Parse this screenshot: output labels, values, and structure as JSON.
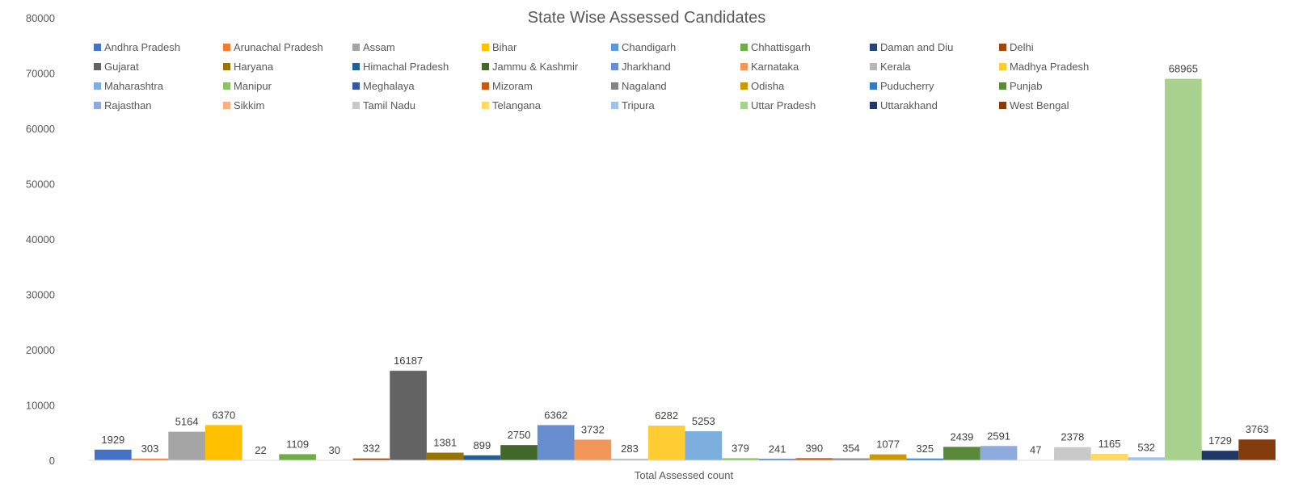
{
  "chart_data": {
    "type": "bar",
    "title": "State Wise Assessed Candidates",
    "xlabel": "Total Assessed count",
    "ylabel": "",
    "ylim": [
      0,
      80000
    ],
    "yticks": [
      0,
      10000,
      20000,
      30000,
      40000,
      50000,
      60000,
      70000,
      80000
    ],
    "grid": false,
    "legend_position": "top",
    "categories": [
      "Total Assessed count"
    ],
    "series": [
      {
        "name": "Andhra Pradesh",
        "values": [
          1929
        ],
        "color": "#4472C4"
      },
      {
        "name": "Arunachal Pradesh",
        "values": [
          303
        ],
        "color": "#ED7D31"
      },
      {
        "name": "Assam",
        "values": [
          5164
        ],
        "color": "#A5A5A5"
      },
      {
        "name": "Bihar",
        "values": [
          6370
        ],
        "color": "#FFC000"
      },
      {
        "name": "Chandigarh",
        "values": [
          22
        ],
        "color": "#5B9BD5"
      },
      {
        "name": "Chhattisgarh",
        "values": [
          1109
        ],
        "color": "#70AD47"
      },
      {
        "name": "Daman and Diu",
        "values": [
          30
        ],
        "color": "#264478"
      },
      {
        "name": "Delhi",
        "values": [
          332
        ],
        "color": "#9E480E"
      },
      {
        "name": "Gujarat",
        "values": [
          16187
        ],
        "color": "#636363"
      },
      {
        "name": "Haryana",
        "values": [
          1381
        ],
        "color": "#997300"
      },
      {
        "name": "Himachal Pradesh",
        "values": [
          899
        ],
        "color": "#255E91"
      },
      {
        "name": "Jammu & Kashmir",
        "values": [
          2750
        ],
        "color": "#43682B"
      },
      {
        "name": "Jharkhand",
        "values": [
          6362
        ],
        "color": "#698ED0"
      },
      {
        "name": "Karnataka",
        "values": [
          3732
        ],
        "color": "#F1975A"
      },
      {
        "name": "Kerala",
        "values": [
          283
        ],
        "color": "#B7B7B7"
      },
      {
        "name": "Madhya Pradesh",
        "values": [
          6282
        ],
        "color": "#FFCD33"
      },
      {
        "name": "Maharashtra",
        "values": [
          5253
        ],
        "color": "#7CAFDD"
      },
      {
        "name": "Manipur",
        "values": [
          379
        ],
        "color": "#8CC168"
      },
      {
        "name": "Meghalaya",
        "values": [
          241
        ],
        "color": "#335AA1"
      },
      {
        "name": "Mizoram",
        "values": [
          390
        ],
        "color": "#C55A11"
      },
      {
        "name": "Nagaland",
        "values": [
          354
        ],
        "color": "#848484"
      },
      {
        "name": "Odisha",
        "values": [
          1077
        ],
        "color": "#CC9A00"
      },
      {
        "name": "Puducherry",
        "values": [
          325
        ],
        "color": "#327DC2"
      },
      {
        "name": "Punjab",
        "values": [
          2439
        ],
        "color": "#5A8A39"
      },
      {
        "name": "Rajasthan",
        "values": [
          2591
        ],
        "color": "#8FAADC"
      },
      {
        "name": "Sikkim",
        "values": [
          47
        ],
        "color": "#F4B183"
      },
      {
        "name": "Tamil Nadu",
        "values": [
          2378
        ],
        "color": "#C9C9C9"
      },
      {
        "name": "Telangana",
        "values": [
          1165
        ],
        "color": "#FFD966"
      },
      {
        "name": "Tripura",
        "values": [
          532
        ],
        "color": "#9DC3E6"
      },
      {
        "name": "Uttar Pradesh",
        "values": [
          68965
        ],
        "color": "#A9D18E"
      },
      {
        "name": "Uttarakhand",
        "values": [
          1729
        ],
        "color": "#1F3864"
      },
      {
        "name": "West Bengal",
        "values": [
          3763
        ],
        "color": "#843C0C"
      }
    ]
  }
}
